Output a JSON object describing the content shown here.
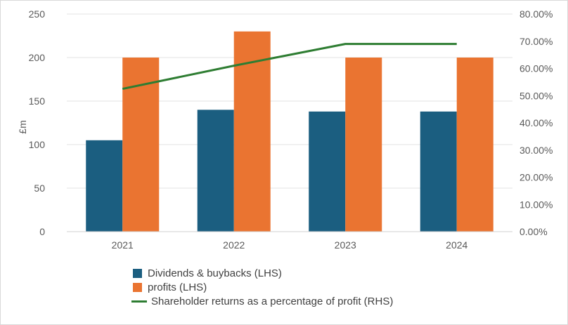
{
  "chart_data": {
    "type": "bar",
    "categories": [
      "2021",
      "2022",
      "2023",
      "2024"
    ],
    "series": [
      {
        "name": "Dividends & buybacks (LHS)",
        "kind": "bar",
        "axis": "left",
        "color": "#1b5e80",
        "values": [
          105,
          140,
          138,
          138
        ]
      },
      {
        "name": "profits (LHS)",
        "kind": "bar",
        "axis": "left",
        "color": "#ea7431",
        "values": [
          200,
          230,
          200,
          200
        ]
      },
      {
        "name": "Shareholder returns as a percentage of profit (RHS)",
        "kind": "line",
        "axis": "right",
        "color": "#2e7d32",
        "values": [
          52.5,
          61,
          69,
          69
        ]
      }
    ],
    "ylabel": "£m",
    "ylim": [
      0,
      250
    ],
    "yticks": [
      "0",
      "50",
      "100",
      "150",
      "200",
      "250"
    ],
    "y2lim": [
      0,
      80
    ],
    "y2ticks": [
      "0.00%",
      "10.00%",
      "20.00%",
      "30.00%",
      "40.00%",
      "50.00%",
      "60.00%",
      "70.00%",
      "80.00%"
    ],
    "grid": true,
    "legend_position": "bottom"
  }
}
